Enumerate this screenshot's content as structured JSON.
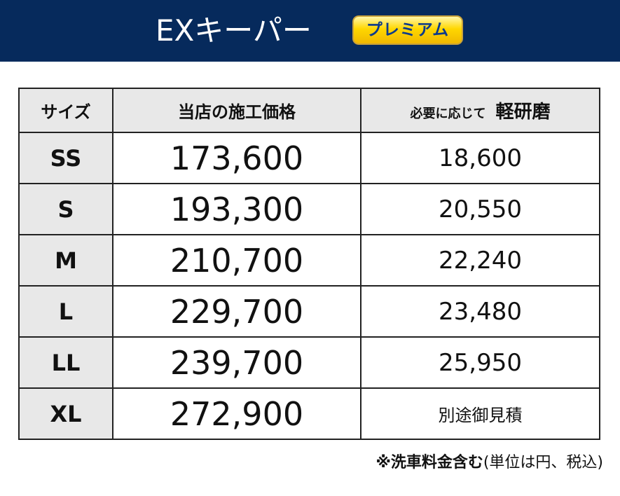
{
  "header": {
    "title": "EXキーパー",
    "badge": "プレミアム",
    "background": "#062a5c",
    "badge_color": "#ffd700"
  },
  "table": {
    "columns": [
      "サイズ",
      "当店の施工価格",
      "必要に応じて",
      "軽研磨"
    ],
    "rows": [
      {
        "size": "SS",
        "price": "173,600",
        "polish": "18,600"
      },
      {
        "size": "S",
        "price": "193,300",
        "polish": "20,550"
      },
      {
        "size": "M",
        "price": "210,700",
        "polish": "22,240"
      },
      {
        "size": "L",
        "price": "229,700",
        "polish": "23,480"
      },
      {
        "size": "LL",
        "price": "239,700",
        "polish": "25,950"
      },
      {
        "size": "XL",
        "price": "272,900",
        "polish": "別途御見積"
      }
    ]
  },
  "note": {
    "bold": "※洗車料金含む",
    "normal": "(単位は円、税込)"
  }
}
